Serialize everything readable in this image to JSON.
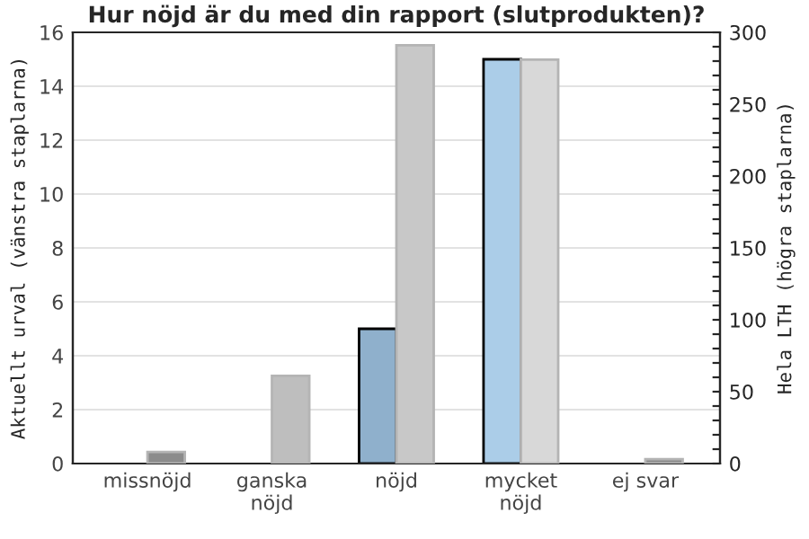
{
  "chart_data": {
    "type": "bar",
    "title": "Hur nöjd är du med din rapport (slutprodukten)?",
    "ylabel": "Aktuellt urval (vänstra staplarna)",
    "y2label": "Hela LTH (högra staplarna)",
    "categories": [
      "missnöjd",
      "ganska\nnöjd",
      "nöjd",
      "mycket\nnöjd",
      "ej svar"
    ],
    "series": [
      {
        "colors": [
          "#8fb0cc",
          "#8fb0cc",
          "#8fb0cc",
          "#abcde8",
          "#8fb0cc"
        ],
        "values": [
          0,
          0,
          5,
          15,
          0
        ]
      },
      {
        "axis": "y2",
        "colors": [
          "#8c8c8c",
          "#bebebe",
          "#c8c8c8",
          "#d8d8d8",
          "#8c8c8c"
        ],
        "values": [
          8,
          61,
          291,
          281,
          3
        ]
      }
    ],
    "ylim": [
      0,
      16
    ],
    "yticks": [
      0,
      2,
      4,
      6,
      8,
      10,
      12,
      14,
      16
    ],
    "y2lim": [
      0,
      300
    ],
    "y2ticks": [
      0,
      {
        "value": 10,
        "label": null
      },
      {
        "value": 20,
        "label": null
      },
      {
        "value": 30,
        "label": null
      },
      {
        "value": 40,
        "label": null
      },
      50,
      {
        "value": 60,
        "label": null
      },
      {
        "value": 70,
        "label": null
      },
      {
        "value": 80,
        "label": null
      },
      {
        "value": 90,
        "label": null
      },
      100,
      {
        "value": 110,
        "label": null
      },
      {
        "value": 120,
        "label": null
      },
      {
        "value": 130,
        "label": null
      },
      {
        "value": 140,
        "label": null
      },
      150,
      {
        "value": 160,
        "label": null
      },
      {
        "value": 170,
        "label": null
      },
      {
        "value": 180,
        "label": null
      },
      {
        "value": 190,
        "label": null
      },
      200,
      {
        "value": 210,
        "label": null
      },
      {
        "value": 220,
        "label": null
      },
      {
        "value": 230,
        "label": null
      },
      {
        "value": 240,
        "label": null
      },
      250,
      {
        "value": 260,
        "label": null
      },
      {
        "value": 270,
        "label": null
      },
      {
        "value": 280,
        "label": null
      },
      {
        "value": 290,
        "label": null
      },
      300
    ],
    "grid": "y"
  }
}
